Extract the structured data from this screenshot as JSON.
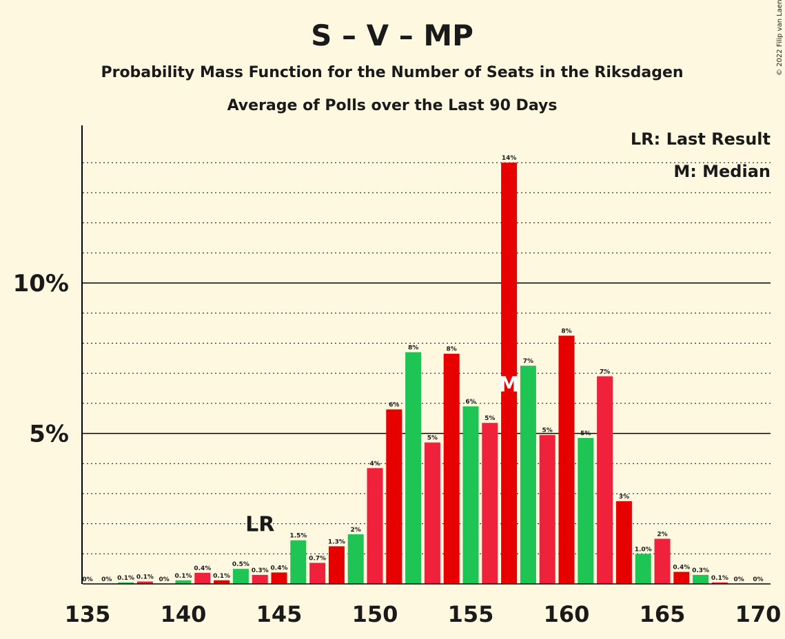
{
  "title": "S – V – MP",
  "subtitle": "Probability Mass Function for the Number of Seats in the Riksdagen",
  "subtitle2": "Average of Polls over the Last 90 Days",
  "copyright": "© 2022 Filip van Laenen",
  "legend": {
    "lr": "LR: Last Result",
    "median": "M: Median"
  },
  "markers": {
    "lr_label": "LR",
    "lr_seat": 144,
    "median_label": "M",
    "median_seat": 157
  },
  "colors": {
    "background": "#fff8e0",
    "green": "#1ec454",
    "red": "#e60000",
    "crimson": "#f0213a",
    "text": "#1a1a1a"
  },
  "chart_data": {
    "type": "bar",
    "title": "S – V – MP",
    "subtitle": "Probability Mass Function for the Number of Seats in the Riksdagen",
    "xlabel": "",
    "ylabel": "",
    "xlim": [
      135,
      170
    ],
    "ylim": [
      0,
      15
    ],
    "x_ticks": [
      "135",
      "140",
      "145",
      "150",
      "155",
      "160",
      "165",
      "170"
    ],
    "x_tick_values": [
      135,
      140,
      145,
      150,
      155,
      160,
      165,
      170
    ],
    "y_ticks": [
      "5%",
      "10%"
    ],
    "y_tick_values": [
      5,
      10
    ],
    "grid": "dotted every 1%, solid at 5% and 10%",
    "legend_position": "top-right",
    "series": [
      {
        "x": [
          135,
          136,
          137,
          138,
          139,
          140,
          141,
          142,
          143,
          144,
          145,
          146,
          147,
          148,
          149,
          150,
          151,
          152,
          153,
          154,
          155,
          156,
          157,
          158,
          159,
          160,
          161,
          162,
          163,
          164,
          165,
          166,
          167,
          168,
          169,
          170
        ],
        "values": [
          0,
          0,
          0.05,
          0.08,
          0,
          0.12,
          0.37,
          0.12,
          0.5,
          0.3,
          0.38,
          1.45,
          0.7,
          1.25,
          1.65,
          3.85,
          5.8,
          7.7,
          4.7,
          7.65,
          5.9,
          5.35,
          14.0,
          7.25,
          4.95,
          8.25,
          4.85,
          6.9,
          2.75,
          1.0,
          1.5,
          0.4,
          0.3,
          0.05,
          0,
          0
        ],
        "labels": [
          "0%",
          "0%",
          "0.1%",
          "0.1%",
          "0%",
          "0.1%",
          "0.4%",
          "0.1%",
          "0.5%",
          "0.3%",
          "0.4%",
          "1.5%",
          "0.7%",
          "1.3%",
          "2%",
          "4%",
          "6%",
          "8%",
          "5%",
          "8%",
          "6%",
          "5%",
          "14%",
          "7%",
          "5%",
          "8%",
          "5%",
          "7%",
          "3%",
          "1.0%",
          "2%",
          "0.4%",
          "0.3%",
          "0.1%",
          "0%",
          "0%"
        ],
        "colors": [
          "green",
          "red",
          "green",
          "crimson",
          "green",
          "green",
          "crimson",
          "red",
          "green",
          "crimson",
          "red",
          "green",
          "crimson",
          "red",
          "green",
          "crimson",
          "red",
          "green",
          "crimson",
          "red",
          "green",
          "crimson",
          "red",
          "green",
          "crimson",
          "red",
          "green",
          "crimson",
          "red",
          "green",
          "crimson",
          "red",
          "green",
          "crimson",
          "green",
          "green"
        ]
      }
    ]
  }
}
